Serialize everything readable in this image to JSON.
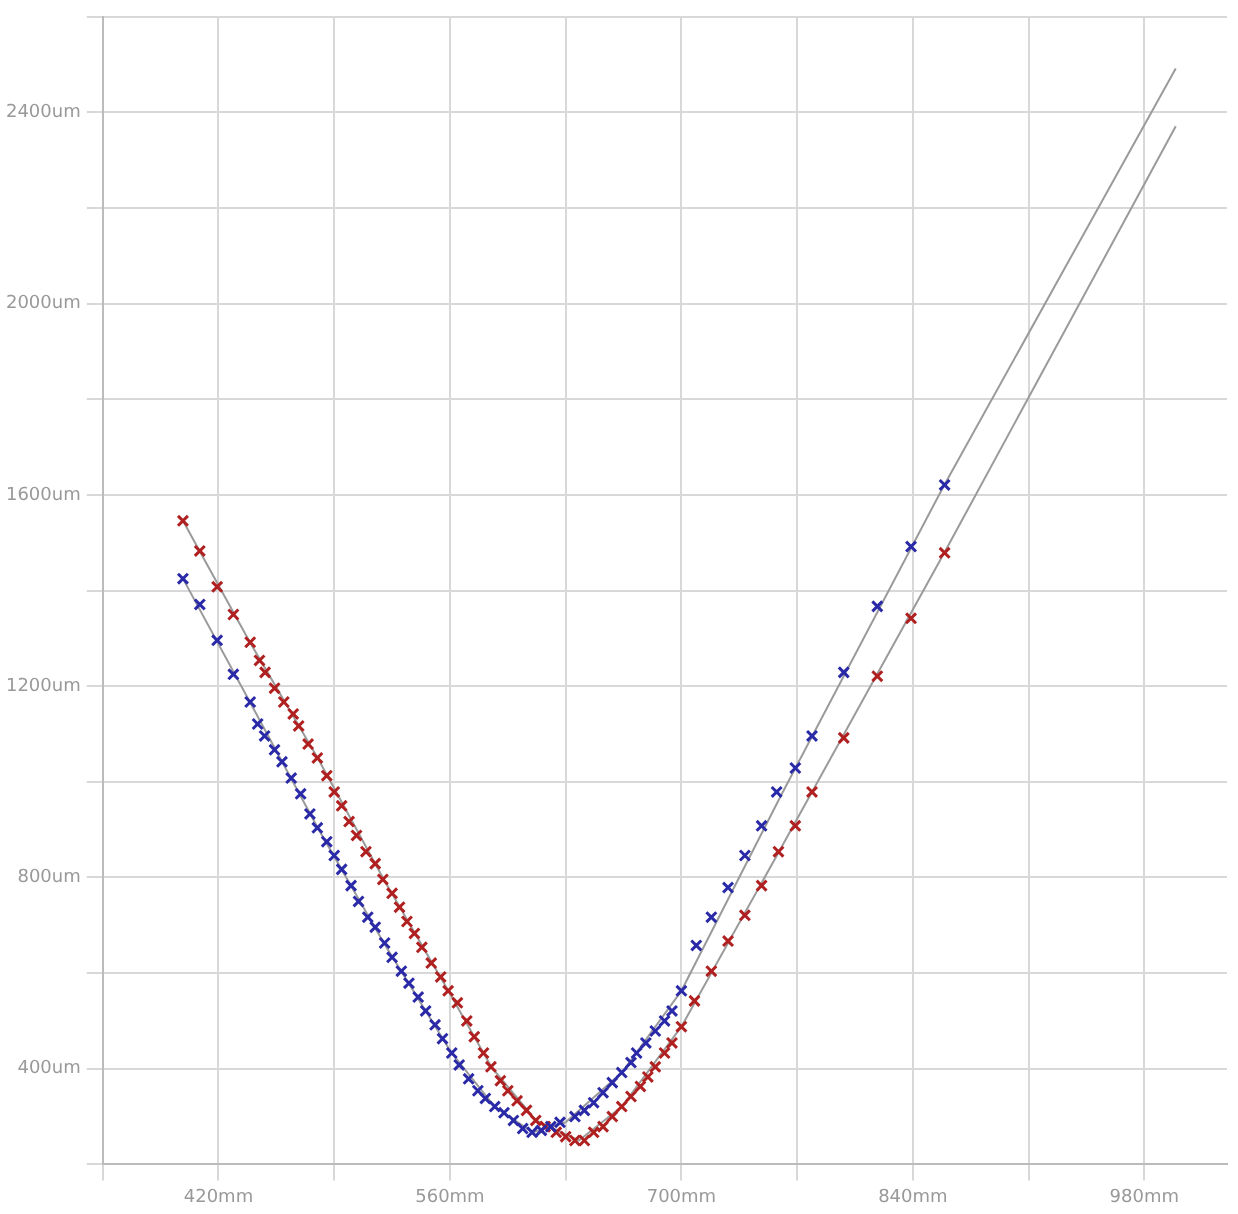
{
  "chart_data": {
    "type": "scatter",
    "xlim": [
      350,
      1030
    ],
    "ylim": [
      200,
      2600
    ],
    "xticks": [
      {
        "value": 350,
        "label": null
      },
      {
        "value": 420,
        "label": "420mm"
      },
      {
        "value": 490,
        "label": null
      },
      {
        "value": 560,
        "label": "560mm"
      },
      {
        "value": 630,
        "label": null
      },
      {
        "value": 700,
        "label": "700mm"
      },
      {
        "value": 770,
        "label": null
      },
      {
        "value": 840,
        "label": "840mm"
      },
      {
        "value": 910,
        "label": null
      },
      {
        "value": 980,
        "label": "980mm"
      }
    ],
    "yticks": [
      {
        "value": 200,
        "label": null
      },
      {
        "value": 400,
        "label": "400um"
      },
      {
        "value": 600,
        "label": null
      },
      {
        "value": 800,
        "label": "800um"
      },
      {
        "value": 1000,
        "label": null
      },
      {
        "value": 1200,
        "label": "1200um"
      },
      {
        "value": 1400,
        "label": null
      },
      {
        "value": 1600,
        "label": "1600um"
      },
      {
        "value": 1800,
        "label": null
      },
      {
        "value": 2000,
        "label": "2000um"
      },
      {
        "value": 2200,
        "label": null
      },
      {
        "value": 2400,
        "label": "2400um"
      },
      {
        "value": 2600,
        "label": null
      }
    ],
    "grid": true,
    "legend": false,
    "series": [
      {
        "type": "scatter",
        "marker": "cross",
        "color": "#2a2aa8",
        "x": [
          398.5,
          408.7,
          419.2,
          429,
          439.2,
          443.7,
          447.9,
          453.9,
          458.4,
          464,
          469.7,
          475.3,
          479.8,
          485.5,
          490,
          494.5,
          500.2,
          504.7,
          510.3,
          514.8,
          520.5,
          525,
          530.6,
          535.2,
          540.8,
          545.3,
          551,
          555.5,
          561.1,
          565.6,
          571.3,
          576.9,
          581.4,
          587.1,
          592.7,
          598.4,
          604,
          609.7,
          615.3,
          621,
          626.6,
          635.6,
          641.3,
          646.9,
          652.6,
          658.2,
          663.9,
          669.5,
          672.9,
          678.5,
          684.2,
          689.8,
          694.3,
          700,
          709,
          718.1,
          728.2,
          738.4,
          748.5,
          757.6,
          768.9,
          779,
          798.2,
          818.5,
          838.9,
          859.2
        ],
        "values": [
          1425,
          1371,
          1296,
          1225,
          1167,
          1121,
          1096,
          1067,
          1042,
          1008,
          975,
          933,
          904,
          875,
          846,
          817,
          783,
          750,
          717,
          696,
          663,
          633,
          604,
          579,
          550,
          521,
          492,
          463,
          433,
          408,
          379,
          354,
          338,
          321,
          308,
          292,
          275,
          267,
          271,
          279,
          288,
          300,
          313,
          329,
          350,
          371,
          392,
          413,
          433,
          454,
          479,
          500,
          521,
          563,
          658,
          717,
          779,
          846,
          908,
          979,
          1029,
          1096,
          1229,
          1367,
          1492,
          1621
        ]
      },
      {
        "type": "scatter",
        "marker": "cross",
        "color": "#b02020",
        "x": [
          398.5,
          408.7,
          419.2,
          429,
          439.2,
          444.8,
          448.2,
          453.9,
          459.5,
          465.2,
          468.5,
          474.2,
          479.8,
          485.5,
          490,
          494.5,
          499,
          503.5,
          509.2,
          514.8,
          519.4,
          525,
          529.5,
          534,
          538.5,
          543,
          548.7,
          554.4,
          558.9,
          564.5,
          570.2,
          574.7,
          580.3,
          584.8,
          590.5,
          595,
          600.6,
          606.3,
          611.9,
          617.6,
          624.3,
          630,
          635.6,
          641.3,
          646.9,
          652.6,
          658.2,
          663.9,
          669.5,
          675.2,
          679.7,
          684.2,
          689.8,
          694.3,
          700,
          707.9,
          718.1,
          728.2,
          738.4,
          748.5,
          758.7,
          768.9,
          779,
          798.2,
          818.5,
          838.9,
          859.2
        ],
        "values": [
          1546,
          1483,
          1408,
          1350,
          1292,
          1254,
          1229,
          1196,
          1167,
          1142,
          1117,
          1079,
          1050,
          1013,
          979,
          950,
          917,
          888,
          854,
          829,
          796,
          767,
          738,
          708,
          683,
          654,
          621,
          592,
          563,
          538,
          500,
          467,
          433,
          404,
          375,
          354,
          333,
          313,
          292,
          279,
          267,
          258,
          250,
          250,
          267,
          279,
          300,
          321,
          342,
          363,
          383,
          404,
          433,
          454,
          488,
          542,
          604,
          667,
          721,
          783,
          854,
          908,
          979,
          1092,
          1221,
          1342,
          1479
        ]
      },
      {
        "type": "line",
        "marker": "none",
        "color": "#9a9a9a",
        "x": [
          398.5,
          439,
          480,
          520,
          561,
          587,
          610,
          630,
          664,
          700,
          760,
          859,
          999
        ],
        "values": [
          1425,
          1167,
          904,
          663,
          433,
          321,
          267,
          288,
          392,
          563,
          970,
          1621,
          2492
        ]
      },
      {
        "type": "line",
        "marker": "none",
        "color": "#9a9a9a",
        "x": [
          398.5,
          439,
          480,
          520,
          559,
          585,
          612,
          638,
          664,
          700,
          759,
          859,
          999
        ],
        "values": [
          1546,
          1292,
          1050,
          796,
          563,
          404,
          292,
          250,
          321,
          488,
          854,
          1479,
          2371
        ]
      }
    ]
  }
}
